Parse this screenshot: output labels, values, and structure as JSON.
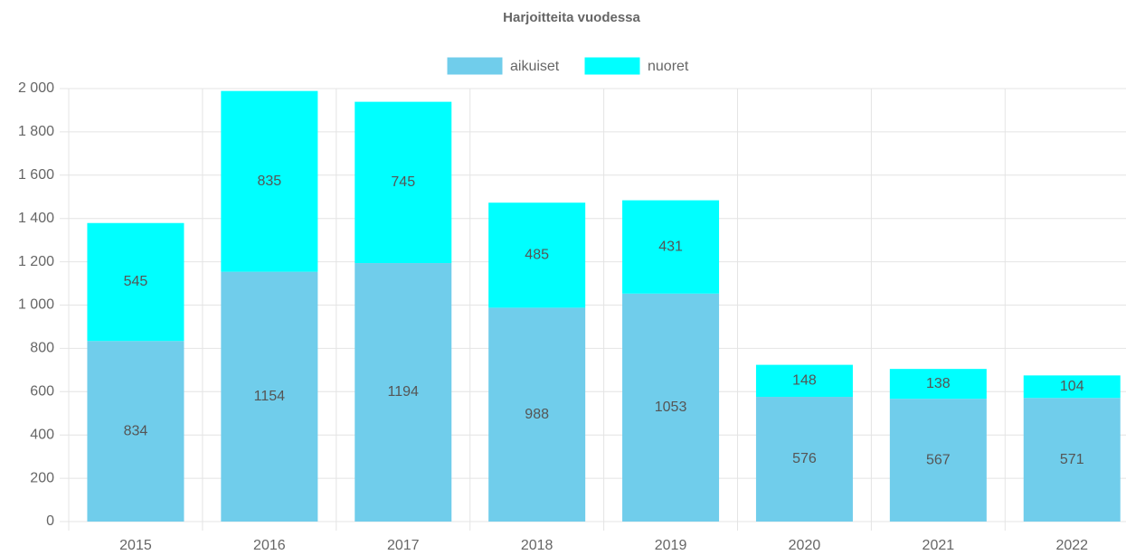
{
  "chart_data": {
    "type": "stacked_bar",
    "title": "Harjoitteita vuodessa",
    "categories": [
      "2015",
      "2016",
      "2017",
      "2018",
      "2019",
      "2020",
      "2021",
      "2022"
    ],
    "series": [
      {
        "name": "aikuiset",
        "color": "#70cdeb",
        "values": [
          834,
          1154,
          1194,
          988,
          1053,
          576,
          567,
          571
        ]
      },
      {
        "name": "nuoret",
        "color": "#00ffff",
        "values": [
          545,
          835,
          745,
          485,
          431,
          148,
          138,
          104
        ]
      }
    ],
    "ylim": [
      0,
      2000
    ],
    "yticks": [
      0,
      200,
      400,
      600,
      800,
      {
        "value": 1000,
        "label": "1 000"
      },
      {
        "value": 1200,
        "label": "1 200"
      },
      {
        "value": 1400,
        "label": "1 400"
      },
      {
        "value": 1600,
        "label": "1 600"
      },
      {
        "value": 1800,
        "label": "1 800"
      },
      {
        "value": 2000,
        "label": "2 000"
      }
    ],
    "grid": true,
    "legend": "top"
  }
}
